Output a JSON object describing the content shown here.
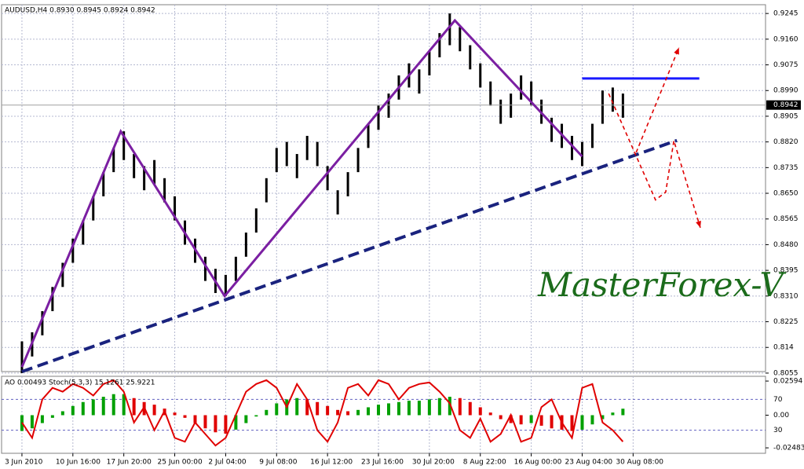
{
  "chart_data": [
    {
      "type": "ohlc",
      "title": "AUDUSD,H4  0.8930 0.8945 0.8924 0.8942",
      "watermark": "MasterForex-V",
      "color": "#000000",
      "xlim": [
        -2,
        73
      ],
      "xticks": [
        {
          "value": 0,
          "label": "3 Jun 2010"
        },
        {
          "value": 5,
          "label": "10 Jun 16:00"
        },
        {
          "value": 10,
          "label": "17 Jun 20:00"
        },
        {
          "value": 15,
          "label": "25 Jun 00:00"
        },
        {
          "value": 20,
          "label": "2 Jul 04:00"
        },
        {
          "value": 25,
          "label": "9 Jul 08:00"
        },
        {
          "value": 30,
          "label": "16 Jul 12:00"
        },
        {
          "value": 35,
          "label": "23 Jul 16:00"
        },
        {
          "value": 40,
          "label": "30 Jul 20:00"
        },
        {
          "value": 45,
          "label": "8 Aug 22:00"
        },
        {
          "value": 50,
          "label": "16 Aug 00:00"
        },
        {
          "value": 55,
          "label": "23 Aug 04:00"
        },
        {
          "value": 60,
          "label": "30 Aug 08:00"
        }
      ],
      "ylim": [
        0.806,
        0.9274
      ],
      "yticks": [
        0.9245,
        {
          "value": 0.916,
          "label": "0.9160"
        },
        0.9075,
        {
          "value": 0.899,
          "label": "0.8990"
        },
        0.8905,
        {
          "value": 0.882,
          "label": "0.8820"
        },
        0.8735,
        {
          "value": 0.865,
          "label": "0.8650"
        },
        0.8565,
        {
          "value": 0.848,
          "label": "0.8480"
        },
        0.8395,
        {
          "value": 0.831,
          "label": "0.8310"
        },
        0.8225,
        0.814,
        0.8055
      ],
      "grid": true,
      "last_price": 0.8942,
      "high": [
        0.816,
        0.819,
        0.826,
        0.834,
        0.842,
        0.85,
        0.856,
        0.864,
        0.872,
        0.88,
        0.8855,
        0.878,
        0.874,
        0.876,
        0.87,
        0.864,
        0.856,
        0.85,
        0.844,
        0.84,
        0.838,
        0.844,
        0.852,
        0.86,
        0.87,
        0.88,
        0.882,
        0.878,
        0.884,
        0.882,
        0.874,
        0.866,
        0.872,
        0.88,
        0.888,
        0.894,
        0.898,
        0.904,
        0.908,
        0.906,
        0.912,
        0.918,
        0.9245,
        0.92,
        0.914,
        0.908,
        0.902,
        0.896,
        0.898,
        0.904,
        0.902,
        0.896,
        0.89,
        0.888,
        0.884,
        0.882,
        0.888,
        0.899,
        0.9,
        0.898
      ],
      "low": [
        0.8055,
        0.811,
        0.818,
        0.826,
        0.834,
        0.842,
        0.848,
        0.856,
        0.864,
        0.872,
        0.876,
        0.87,
        0.866,
        0.868,
        0.862,
        0.856,
        0.848,
        0.842,
        0.836,
        0.832,
        0.831,
        0.836,
        0.844,
        0.852,
        0.862,
        0.872,
        0.874,
        0.87,
        0.876,
        0.874,
        0.866,
        0.858,
        0.864,
        0.872,
        0.88,
        0.886,
        0.89,
        0.896,
        0.9,
        0.898,
        0.904,
        0.91,
        0.914,
        0.912,
        0.906,
        0.9,
        0.894,
        0.888,
        0.89,
        0.896,
        0.894,
        0.888,
        0.882,
        0.88,
        0.876,
        0.874,
        0.88,
        0.888,
        0.892,
        0.89
      ],
      "lines": [
        {
          "color": "#7b1fa2",
          "dash": "none",
          "x": [
            0,
            9.7,
            19.9,
            42.5,
            55
          ],
          "values": [
            0.8075,
            0.8855,
            0.831,
            0.9222,
            0.8772
          ]
        },
        {
          "color": "#1a237e",
          "dash": "long",
          "x": [
            0,
            64.3
          ],
          "values": [
            0.806,
            0.8825
          ]
        },
        {
          "color": "#1a1aff",
          "dash": "none",
          "x": [
            55,
            66.5
          ],
          "values": [
            0.903,
            0.903
          ]
        },
        {
          "color": "#e00000",
          "dash": "short",
          "x": [
            57.6,
            62.2,
            63.2,
            64.0,
            66.6
          ],
          "values": [
            0.898,
            0.8628,
            0.8654,
            0.8824,
            0.8536
          ]
        },
        {
          "color": "#e00000",
          "dash": "short",
          "x": [
            60.3,
            64.5
          ],
          "values": [
            0.8785,
            0.9132
          ]
        }
      ]
    },
    {
      "type": "ao",
      "title": "AO 0.00493  Stoch(5,3,3) 15.1261 25.9221",
      "up_color": "#00a000",
      "down_color": "#e00000",
      "ylim": [
        -0.02896,
        0.02956
      ],
      "yticks": [
        0.02594,
        {
          "value": 0,
          "label": "0.00"
        },
        -0.02483
      ],
      "y2lim": [
        0,
        100
      ],
      "y2ticks": [
        70,
        30
      ],
      "series": [
        {
          "values": [
            -0.012,
            -0.01,
            -0.006,
            -0.002,
            0.003,
            0.007,
            0.01,
            0.012,
            0.014,
            0.016,
            0.016,
            0.013,
            0.01,
            0.008,
            0.005,
            0.002,
            -0.002,
            -0.006,
            -0.01,
            -0.013,
            -0.014,
            -0.011,
            -0.006,
            -0.001,
            0.004,
            0.009,
            0.012,
            0.013,
            0.012,
            0.01,
            0.007,
            0.004,
            0.003,
            0.004,
            0.006,
            0.008,
            0.009,
            0.01,
            0.011,
            0.011,
            0.012,
            0.013,
            0.014,
            0.013,
            0.01,
            0.006,
            0.002,
            -0.003,
            -0.006,
            -0.007,
            -0.006,
            -0.008,
            -0.01,
            -0.011,
            -0.012,
            -0.011,
            -0.007,
            -0.003,
            0.002,
            0.00493
          ]
        },
        {
          "axis": "y2",
          "color": "#e00000",
          "values": [
            40,
            20,
            70,
            85,
            80,
            90,
            85,
            75,
            90,
            95,
            80,
            40,
            60,
            30,
            55,
            20,
            15,
            40,
            25,
            10,
            20,
            50,
            80,
            90,
            95,
            85,
            60,
            90,
            70,
            30,
            15,
            40,
            85,
            90,
            75,
            95,
            90,
            70,
            85,
            90,
            92,
            80,
            65,
            30,
            20,
            45,
            15,
            25,
            50,
            15,
            20,
            60,
            70,
            40,
            20,
            85,
            90,
            40,
            30,
            15.1261
          ]
        }
      ]
    }
  ]
}
